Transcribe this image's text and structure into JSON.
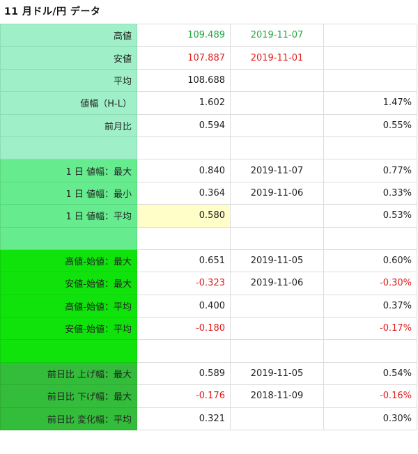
{
  "title": "11 月ドル/円 データ",
  "colors": {
    "up": "#1faa3c",
    "down": "#e01c1c",
    "highlight": "#fffdc8"
  },
  "rows": [
    {
      "label": "高値",
      "value": "109.489",
      "date": "2019-11-07",
      "pct": ""
    },
    {
      "label": "安値",
      "value": "107.887",
      "date": "2019-11-01",
      "pct": ""
    },
    {
      "label": "平均",
      "value": "108.688",
      "date": "",
      "pct": ""
    },
    {
      "label": "値幅（H-L）",
      "value": "1.602",
      "date": "",
      "pct": "1.47%"
    },
    {
      "label": "前月比",
      "value": "0.594",
      "date": "",
      "pct": "0.55%"
    },
    {
      "label": "",
      "value": "",
      "date": "",
      "pct": ""
    },
    {
      "label": "1 日 値幅：最大",
      "value": "0.840",
      "date": "2019-11-07",
      "pct": "0.77%"
    },
    {
      "label": "1 日 値幅：最小",
      "value": "0.364",
      "date": "2019-11-06",
      "pct": "0.33%"
    },
    {
      "label": "1 日 値幅：平均",
      "value": "0.580",
      "date": "",
      "pct": "0.53%"
    },
    {
      "label": "",
      "value": "",
      "date": "",
      "pct": ""
    },
    {
      "label": "高値-始値：最大",
      "value": "0.651",
      "date": "2019-11-05",
      "pct": "0.60%"
    },
    {
      "label": "安値-始値：最大",
      "value": "-0.323",
      "date": "2019-11-06",
      "pct": "-0.30%"
    },
    {
      "label": "高値-始値：平均",
      "value": "0.400",
      "date": "",
      "pct": "0.37%"
    },
    {
      "label": "安値-始値：平均",
      "value": "-0.180",
      "date": "",
      "pct": "-0.17%"
    },
    {
      "label": "",
      "value": "",
      "date": "",
      "pct": ""
    },
    {
      "label": "前日比 上げ幅：最大",
      "value": "0.589",
      "date": "2019-11-05",
      "pct": "0.54%"
    },
    {
      "label": "前日比 下げ幅：最大",
      "value": "-0.176",
      "date": "2018-11-09",
      "pct": "-0.16%"
    },
    {
      "label": "前日比 変化幅：平均",
      "value": "0.321",
      "date": "",
      "pct": "0.30%"
    }
  ]
}
